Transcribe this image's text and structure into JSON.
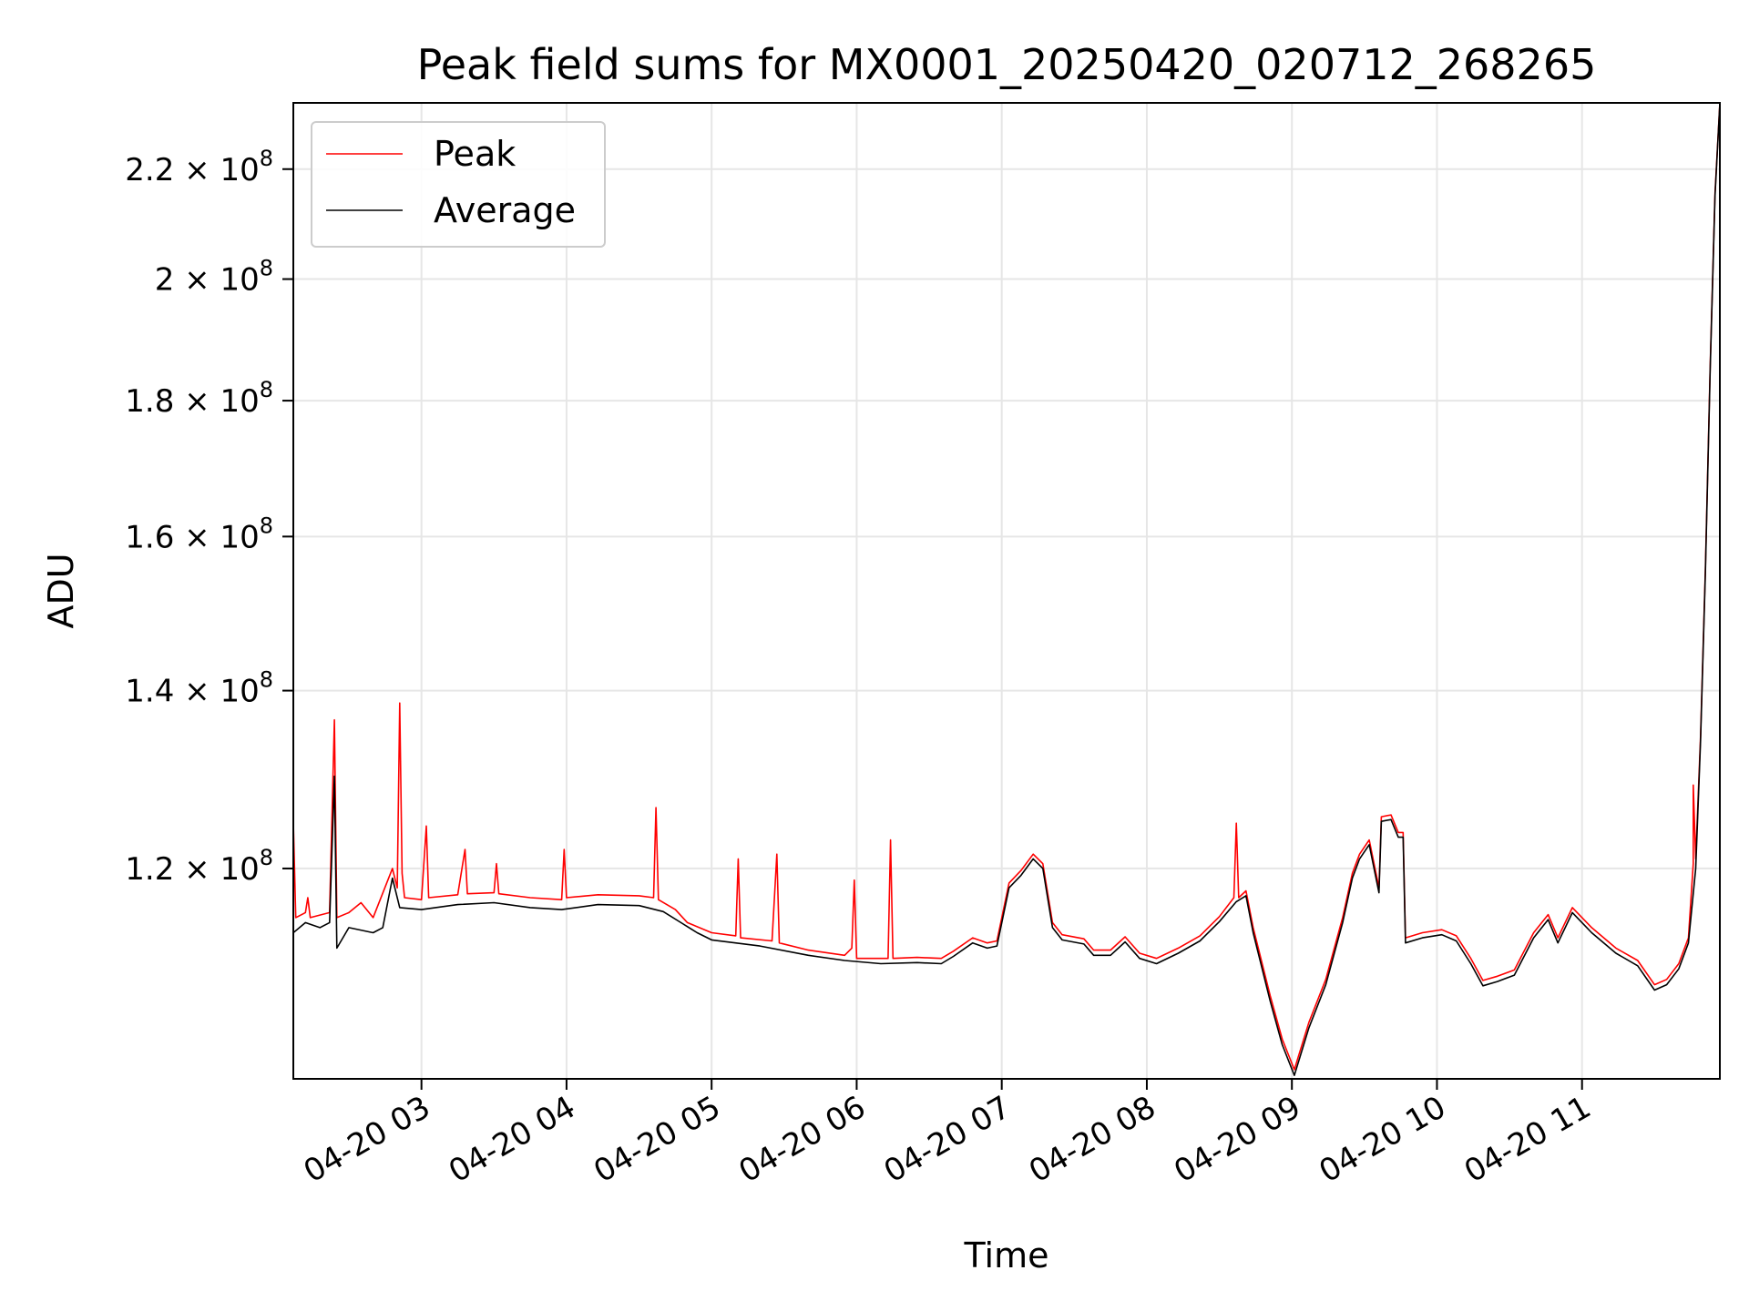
{
  "chart_data": {
    "type": "line",
    "title": "Peak field sums for MX0001_20250420_020712_268265",
    "xlabel": "Time",
    "ylabel": "ADU",
    "y_scale": "log",
    "ylim": [
      100000000,
      233000000
    ],
    "xlim": [
      "2025-04-20 02:07",
      "2025-04-20 11:57"
    ],
    "grid": true,
    "legend": {
      "placement": "top-left"
    },
    "x_ticks": [
      {
        "t": "2025-04-20 03:00",
        "label": "04-20 03"
      },
      {
        "t": "2025-04-20 04:00",
        "label": "04-20 04"
      },
      {
        "t": "2025-04-20 05:00",
        "label": "04-20 05"
      },
      {
        "t": "2025-04-20 06:00",
        "label": "04-20 06"
      },
      {
        "t": "2025-04-20 07:00",
        "label": "04-20 07"
      },
      {
        "t": "2025-04-20 08:00",
        "label": "04-20 08"
      },
      {
        "t": "2025-04-20 09:00",
        "label": "04-20 09"
      },
      {
        "t": "2025-04-20 10:00",
        "label": "04-20 10"
      },
      {
        "t": "2025-04-20 11:00",
        "label": "04-20 11"
      }
    ],
    "y_ticks": [
      {
        "value": 120000000,
        "mantissa": "1.2",
        "exponent": "8"
      },
      {
        "value": 140000000,
        "mantissa": "1.4",
        "exponent": "8"
      },
      {
        "value": 160000000,
        "mantissa": "1.6",
        "exponent": "8"
      },
      {
        "value": 180000000,
        "mantissa": "1.8",
        "exponent": "8"
      },
      {
        "value": 200000000,
        "mantissa": "2",
        "exponent": "8"
      },
      {
        "value": 220000000,
        "mantissa": "2.2",
        "exponent": "8"
      }
    ],
    "series": [
      {
        "name": "Average",
        "color": "#000000",
        "points": [
          [
            "2025-04-20 02:07",
            113500000
          ],
          [
            "2025-04-20 02:12",
            114500000
          ],
          [
            "2025-04-20 02:18",
            114000000
          ],
          [
            "2025-04-20 02:22",
            114500000
          ],
          [
            "2025-04-20 02:24",
            130000000
          ],
          [
            "2025-04-20 02:25",
            112000000
          ],
          [
            "2025-04-20 02:30",
            114000000
          ],
          [
            "2025-04-20 02:40",
            113500000
          ],
          [
            "2025-04-20 02:44",
            114000000
          ],
          [
            "2025-04-20 02:48",
            119000000
          ],
          [
            "2025-04-20 02:51",
            116000000
          ],
          [
            "2025-04-20 03:00",
            115800000
          ],
          [
            "2025-04-20 03:15",
            116300000
          ],
          [
            "2025-04-20 03:30",
            116500000
          ],
          [
            "2025-04-20 03:45",
            116000000
          ],
          [
            "2025-04-20 03:58",
            115800000
          ],
          [
            "2025-04-20 04:13",
            116300000
          ],
          [
            "2025-04-20 04:30",
            116200000
          ],
          [
            "2025-04-20 04:40",
            115600000
          ],
          [
            "2025-04-20 04:48",
            114400000
          ],
          [
            "2025-04-20 04:54",
            113500000
          ],
          [
            "2025-04-20 05:00",
            112800000
          ],
          [
            "2025-04-20 05:20",
            112200000
          ],
          [
            "2025-04-20 05:40",
            111300000
          ],
          [
            "2025-04-20 05:55",
            110800000
          ],
          [
            "2025-04-20 06:10",
            110500000
          ],
          [
            "2025-04-20 06:25",
            110600000
          ],
          [
            "2025-04-20 06:35",
            110500000
          ],
          [
            "2025-04-20 06:40",
            111200000
          ],
          [
            "2025-04-20 06:48",
            112500000
          ],
          [
            "2025-04-20 06:54",
            112000000
          ],
          [
            "2025-04-20 06:58",
            112200000
          ],
          [
            "2025-04-20 07:03",
            118000000
          ],
          [
            "2025-04-20 07:08",
            119300000
          ],
          [
            "2025-04-20 07:13",
            121000000
          ],
          [
            "2025-04-20 07:17",
            120000000
          ],
          [
            "2025-04-20 07:21",
            114000000
          ],
          [
            "2025-04-20 07:25",
            112800000
          ],
          [
            "2025-04-20 07:34",
            112400000
          ],
          [
            "2025-04-20 07:38",
            111300000
          ],
          [
            "2025-04-20 07:45",
            111300000
          ],
          [
            "2025-04-20 07:51",
            112600000
          ],
          [
            "2025-04-20 07:57",
            111000000
          ],
          [
            "2025-04-20 08:04",
            110500000
          ],
          [
            "2025-04-20 08:13",
            111500000
          ],
          [
            "2025-04-20 08:22",
            112700000
          ],
          [
            "2025-04-20 08:30",
            114600000
          ],
          [
            "2025-04-20 08:37",
            116600000
          ],
          [
            "2025-04-20 08:41",
            117200000
          ],
          [
            "2025-04-20 08:44",
            113500000
          ],
          [
            "2025-04-20 08:51",
            107000000
          ],
          [
            "2025-04-20 08:56",
            103000000
          ],
          [
            "2025-04-20 09:01",
            100300000
          ],
          [
            "2025-04-20 09:07",
            104500000
          ],
          [
            "2025-04-20 09:14",
            108500000
          ],
          [
            "2025-04-20 09:21",
            114500000
          ],
          [
            "2025-04-20 09:25",
            119000000
          ],
          [
            "2025-04-20 09:28",
            121000000
          ],
          [
            "2025-04-20 09:32",
            122500000
          ],
          [
            "2025-04-20 09:36",
            117500000
          ],
          [
            "2025-04-20 09:37",
            125000000
          ],
          [
            "2025-04-20 09:41",
            125200000
          ],
          [
            "2025-04-20 09:44",
            123300000
          ],
          [
            "2025-04-20 09:46",
            123300000
          ],
          [
            "2025-04-20 09:47",
            112500000
          ],
          [
            "2025-04-20 09:54",
            113000000
          ],
          [
            "2025-04-20 10:02",
            113300000
          ],
          [
            "2025-04-20 10:08",
            112700000
          ],
          [
            "2025-04-20 10:14",
            110500000
          ],
          [
            "2025-04-20 10:19",
            108400000
          ],
          [
            "2025-04-20 10:25",
            108800000
          ],
          [
            "2025-04-20 10:32",
            109400000
          ],
          [
            "2025-04-20 10:40",
            113000000
          ],
          [
            "2025-04-20 10:46",
            114800000
          ],
          [
            "2025-04-20 10:50",
            112500000
          ],
          [
            "2025-04-20 10:56",
            115500000
          ],
          [
            "2025-04-20 11:04",
            113500000
          ],
          [
            "2025-04-20 11:14",
            111500000
          ],
          [
            "2025-04-20 11:23",
            110300000
          ],
          [
            "2025-04-20 11:30",
            108000000
          ],
          [
            "2025-04-20 11:35",
            108500000
          ],
          [
            "2025-04-20 11:40",
            110000000
          ],
          [
            "2025-04-20 11:44",
            112500000
          ],
          [
            "2025-04-20 11:47",
            120000000
          ],
          [
            "2025-04-20 11:49",
            134000000
          ],
          [
            "2025-04-20 11:51",
            155000000
          ],
          [
            "2025-04-20 11:53",
            185000000
          ],
          [
            "2025-04-20 11:55",
            215000000
          ],
          [
            "2025-04-20 11:57",
            233000000
          ]
        ]
      },
      {
        "name": "Peak",
        "color": "#ff0000",
        "points": [
          [
            "2025-04-20 02:07",
            114500000
          ],
          [
            "2025-04-20 02:07",
            125000000
          ],
          [
            "2025-04-20 02:08",
            115000000
          ],
          [
            "2025-04-20 02:12",
            115500000
          ],
          [
            "2025-04-20 02:13",
            117000000
          ],
          [
            "2025-04-20 02:14",
            115000000
          ],
          [
            "2025-04-20 02:22",
            115500000
          ],
          [
            "2025-04-20 02:24",
            136500000
          ],
          [
            "2025-04-20 02:25",
            115000000
          ],
          [
            "2025-04-20 02:30",
            115500000
          ],
          [
            "2025-04-20 02:35",
            116500000
          ],
          [
            "2025-04-20 02:40",
            115000000
          ],
          [
            "2025-04-20 02:48",
            120000000
          ],
          [
            "2025-04-20 02:50",
            118000000
          ],
          [
            "2025-04-20 02:51",
            138500000
          ],
          [
            "2025-04-20 02:52",
            119500000
          ],
          [
            "2025-04-20 02:53",
            117000000
          ],
          [
            "2025-04-20 03:00",
            116800000
          ],
          [
            "2025-04-20 03:02",
            124500000
          ],
          [
            "2025-04-20 03:03",
            117000000
          ],
          [
            "2025-04-20 03:15",
            117300000
          ],
          [
            "2025-04-20 03:18",
            122000000
          ],
          [
            "2025-04-20 03:19",
            117400000
          ],
          [
            "2025-04-20 03:30",
            117500000
          ],
          [
            "2025-04-20 03:31",
            120500000
          ],
          [
            "2025-04-20 03:32",
            117400000
          ],
          [
            "2025-04-20 03:45",
            117000000
          ],
          [
            "2025-04-20 03:58",
            116800000
          ],
          [
            "2025-04-20 03:59",
            122000000
          ],
          [
            "2025-04-20 04:00",
            117000000
          ],
          [
            "2025-04-20 04:13",
            117300000
          ],
          [
            "2025-04-20 04:30",
            117200000
          ],
          [
            "2025-04-20 04:36",
            117000000
          ],
          [
            "2025-04-20 04:37",
            126500000
          ],
          [
            "2025-04-20 04:38",
            116800000
          ],
          [
            "2025-04-20 04:45",
            115800000
          ],
          [
            "2025-04-20 04:50",
            114500000
          ],
          [
            "2025-04-20 05:00",
            113500000
          ],
          [
            "2025-04-20 05:10",
            113200000
          ],
          [
            "2025-04-20 05:11",
            121000000
          ],
          [
            "2025-04-20 05:12",
            113000000
          ],
          [
            "2025-04-20 05:25",
            112700000
          ],
          [
            "2025-04-20 05:27",
            121500000
          ],
          [
            "2025-04-20 05:28",
            112500000
          ],
          [
            "2025-04-20 05:40",
            111800000
          ],
          [
            "2025-04-20 05:55",
            111300000
          ],
          [
            "2025-04-20 05:58",
            112000000
          ],
          [
            "2025-04-20 05:59",
            118800000
          ],
          [
            "2025-04-20 06:00",
            111000000
          ],
          [
            "2025-04-20 06:10",
            111000000
          ],
          [
            "2025-04-20 06:13",
            111000000
          ],
          [
            "2025-04-20 06:14",
            123000000
          ],
          [
            "2025-04-20 06:15",
            111000000
          ],
          [
            "2025-04-20 06:25",
            111100000
          ],
          [
            "2025-04-20 06:35",
            111000000
          ],
          [
            "2025-04-20 06:40",
            111700000
          ],
          [
            "2025-04-20 06:48",
            113000000
          ],
          [
            "2025-04-20 06:54",
            112500000
          ],
          [
            "2025-04-20 06:58",
            112700000
          ],
          [
            "2025-04-20 07:03",
            118500000
          ],
          [
            "2025-04-20 07:08",
            119800000
          ],
          [
            "2025-04-20 07:13",
            121500000
          ],
          [
            "2025-04-20 07:17",
            120500000
          ],
          [
            "2025-04-20 07:21",
            114500000
          ],
          [
            "2025-04-20 07:25",
            113300000
          ],
          [
            "2025-04-20 07:34",
            112900000
          ],
          [
            "2025-04-20 07:38",
            111800000
          ],
          [
            "2025-04-20 07:45",
            111800000
          ],
          [
            "2025-04-20 07:51",
            113100000
          ],
          [
            "2025-04-20 07:57",
            111500000
          ],
          [
            "2025-04-20 08:04",
            111000000
          ],
          [
            "2025-04-20 08:13",
            112000000
          ],
          [
            "2025-04-20 08:22",
            113200000
          ],
          [
            "2025-04-20 08:30",
            115100000
          ],
          [
            "2025-04-20 08:36",
            117000000
          ],
          [
            "2025-04-20 08:37",
            124800000
          ],
          [
            "2025-04-20 08:38",
            117000000
          ],
          [
            "2025-04-20 08:41",
            117700000
          ],
          [
            "2025-04-20 08:44",
            114000000
          ],
          [
            "2025-04-20 08:51",
            107500000
          ],
          [
            "2025-04-20 08:56",
            103500000
          ],
          [
            "2025-04-20 09:01",
            100800000
          ],
          [
            "2025-04-20 09:07",
            105000000
          ],
          [
            "2025-04-20 09:14",
            109000000
          ],
          [
            "2025-04-20 09:21",
            115000000
          ],
          [
            "2025-04-20 09:25",
            119500000
          ],
          [
            "2025-04-20 09:28",
            121500000
          ],
          [
            "2025-04-20 09:32",
            123000000
          ],
          [
            "2025-04-20 09:36",
            118000000
          ],
          [
            "2025-04-20 09:37",
            125500000
          ],
          [
            "2025-04-20 09:41",
            125700000
          ],
          [
            "2025-04-20 09:44",
            123800000
          ],
          [
            "2025-04-20 09:46",
            123800000
          ],
          [
            "2025-04-20 09:47",
            113000000
          ],
          [
            "2025-04-20 09:54",
            113500000
          ],
          [
            "2025-04-20 10:02",
            113800000
          ],
          [
            "2025-04-20 10:08",
            113200000
          ],
          [
            "2025-04-20 10:14",
            111000000
          ],
          [
            "2025-04-20 10:19",
            108900000
          ],
          [
            "2025-04-20 10:25",
            109300000
          ],
          [
            "2025-04-20 10:32",
            109900000
          ],
          [
            "2025-04-20 10:40",
            113500000
          ],
          [
            "2025-04-20 10:46",
            115300000
          ],
          [
            "2025-04-20 10:50",
            113000000
          ],
          [
            "2025-04-20 10:56",
            116000000
          ],
          [
            "2025-04-20 11:04",
            114000000
          ],
          [
            "2025-04-20 11:14",
            112000000
          ],
          [
            "2025-04-20 11:23",
            110800000
          ],
          [
            "2025-04-20 11:30",
            108500000
          ],
          [
            "2025-04-20 11:35",
            109000000
          ],
          [
            "2025-04-20 11:40",
            110500000
          ],
          [
            "2025-04-20 11:44",
            113000000
          ],
          [
            "2025-04-20 11:46",
            120500000
          ],
          [
            "2025-04-20 11:46",
            129000000
          ],
          [
            "2025-04-20 11:47",
            121000000
          ],
          [
            "2025-04-20 11:49",
            134500000
          ],
          [
            "2025-04-20 11:51",
            155500000
          ],
          [
            "2025-04-20 11:53",
            185500000
          ],
          [
            "2025-04-20 11:55",
            215500000
          ],
          [
            "2025-04-20 11:57",
            233000000
          ]
        ]
      }
    ]
  }
}
